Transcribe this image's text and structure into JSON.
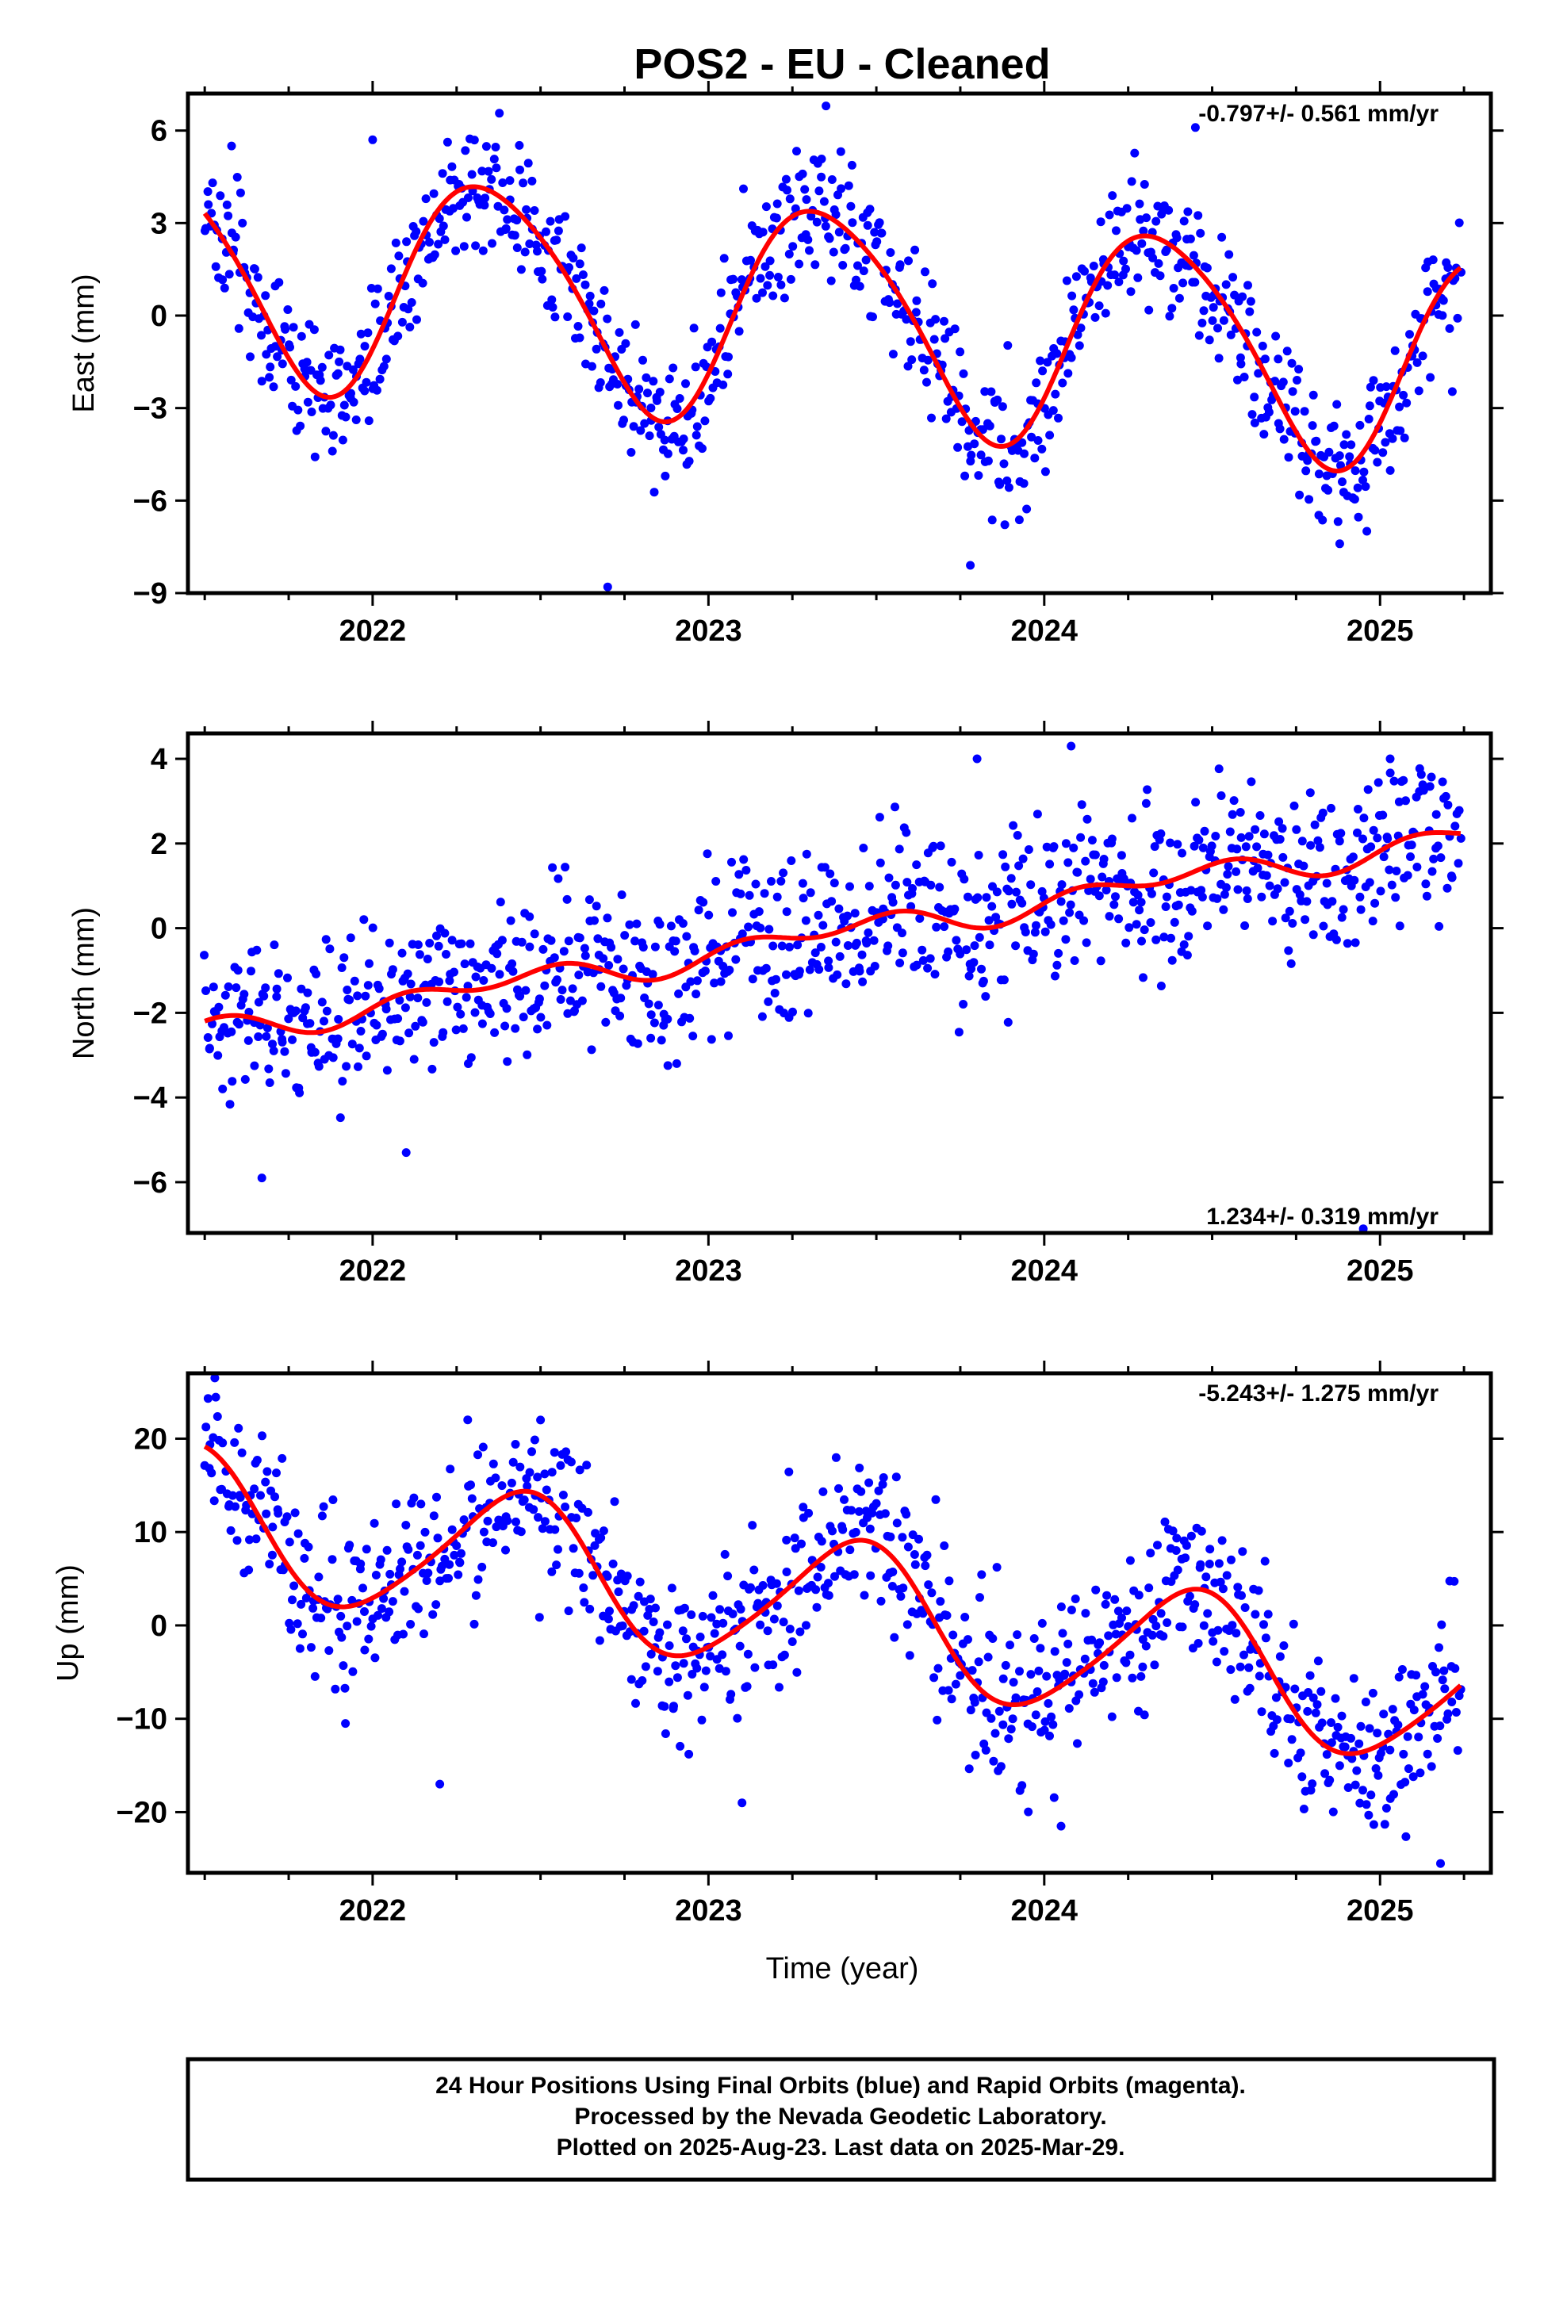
{
  "title": "POS2  - EU - Cleaned",
  "colors": {
    "final_orbits": "#0000ff",
    "rapid_orbits": "#ff00ff",
    "model_curve": "#ff0000",
    "frame": "#000000"
  },
  "xlabel": "Time (year)",
  "footer": {
    "line1": "24 Hour Positions Using Final Orbits (blue) and Rapid Orbits (magenta).",
    "line2": "Processed by the Nevada Geodetic Laboratory.",
    "line3": "Plotted on 2025-Aug-23. Last data on 2025-Mar-29."
  },
  "chart_data": [
    {
      "type": "scatter",
      "component": "east",
      "ylabel": "East (mm)",
      "xlim": [
        2021.45,
        2025.33
      ],
      "ylim": [
        -9,
        7.2
      ],
      "xticks": [
        2022,
        2023,
        2024,
        2025
      ],
      "yticks": [
        -9,
        -6,
        -3,
        0,
        3,
        6
      ],
      "rate_label": "-0.797+/- 0.561 mm/yr",
      "rate_position": "top-right",
      "grid": false,
      "series": [
        {
          "kind": "points",
          "x_start": 2021.5,
          "x_end": 2025.24,
          "count": 900,
          "noise_sd": 1.1,
          "outliers": [
            [
              2022.7,
              -8.8
            ],
            [
              2023.35,
              6.8
            ],
            [
              2023.78,
              -8.1
            ],
            [
              2024.45,
              6.1
            ],
            [
              2024.88,
              -7.4
            ],
            [
              2022.0,
              5.7
            ],
            [
              2021.58,
              5.5
            ]
          ]
        },
        {
          "kind": "model",
          "model": {
            "offset": 0.0,
            "rate": -0.797,
            "ref": 2023.4,
            "ann_sin": 2.9,
            "ann_cos": -2.0,
            "semi_sin": 0.4,
            "semi_cos": -0.2
          }
        }
      ]
    },
    {
      "type": "scatter",
      "component": "north",
      "ylabel": "North (mm)",
      "xlim": [
        2021.45,
        2025.33
      ],
      "ylim": [
        -7.2,
        4.6
      ],
      "xticks": [
        2022,
        2023,
        2024,
        2025
      ],
      "yticks": [
        -6,
        -4,
        -2,
        0,
        2,
        4
      ],
      "rate_label": "1.234+/- 0.319 mm/yr",
      "rate_position": "bottom-right",
      "grid": false,
      "series": [
        {
          "kind": "points",
          "x_start": 2021.5,
          "x_end": 2025.24,
          "count": 900,
          "noise_sd": 0.95,
          "outliers": [
            [
              2021.67,
              -5.9
            ],
            [
              2022.1,
              -5.3
            ],
            [
              2023.8,
              4.0
            ],
            [
              2024.08,
              4.3
            ],
            [
              2024.95,
              -7.1
            ],
            [
              2025.03,
              4.0
            ]
          ]
        },
        {
          "kind": "model",
          "model": {
            "offset": -0.1,
            "rate": 1.234,
            "ref": 2023.4,
            "ann_sin": 0.15,
            "ann_cos": -0.15,
            "semi_sin": 0.2,
            "semi_cos": 0.1
          }
        }
      ]
    },
    {
      "type": "scatter",
      "component": "up",
      "ylabel": "Up (mm)",
      "xlim": [
        2021.45,
        2025.33
      ],
      "ylim": [
        -26.5,
        27
      ],
      "xticks": [
        2022,
        2023,
        2024,
        2025
      ],
      "yticks": [
        -20,
        -10,
        0,
        10,
        20
      ],
      "rate_label": "-5.243+/- 1.275 mm/yr",
      "rate_position": "top-right",
      "grid": false,
      "series": [
        {
          "kind": "points",
          "x_start": 2021.5,
          "x_end": 2025.24,
          "count": 900,
          "noise_sd": 4.5,
          "outliers": [
            [
              2021.53,
              26.5
            ],
            [
              2022.2,
              -17.0
            ],
            [
              2023.1,
              -19.0
            ],
            [
              2024.05,
              -21.5
            ],
            [
              2025.18,
              -25.5
            ],
            [
              2022.5,
              22.0
            ]
          ]
        },
        {
          "kind": "model",
          "model": {
            "offset": 1.5,
            "rate": -5.243,
            "ref": 2023.4,
            "ann_sin": 3.0,
            "ann_cos": -6.8,
            "semi_sin": 0.4,
            "semi_cos": 0.9
          }
        }
      ]
    }
  ]
}
